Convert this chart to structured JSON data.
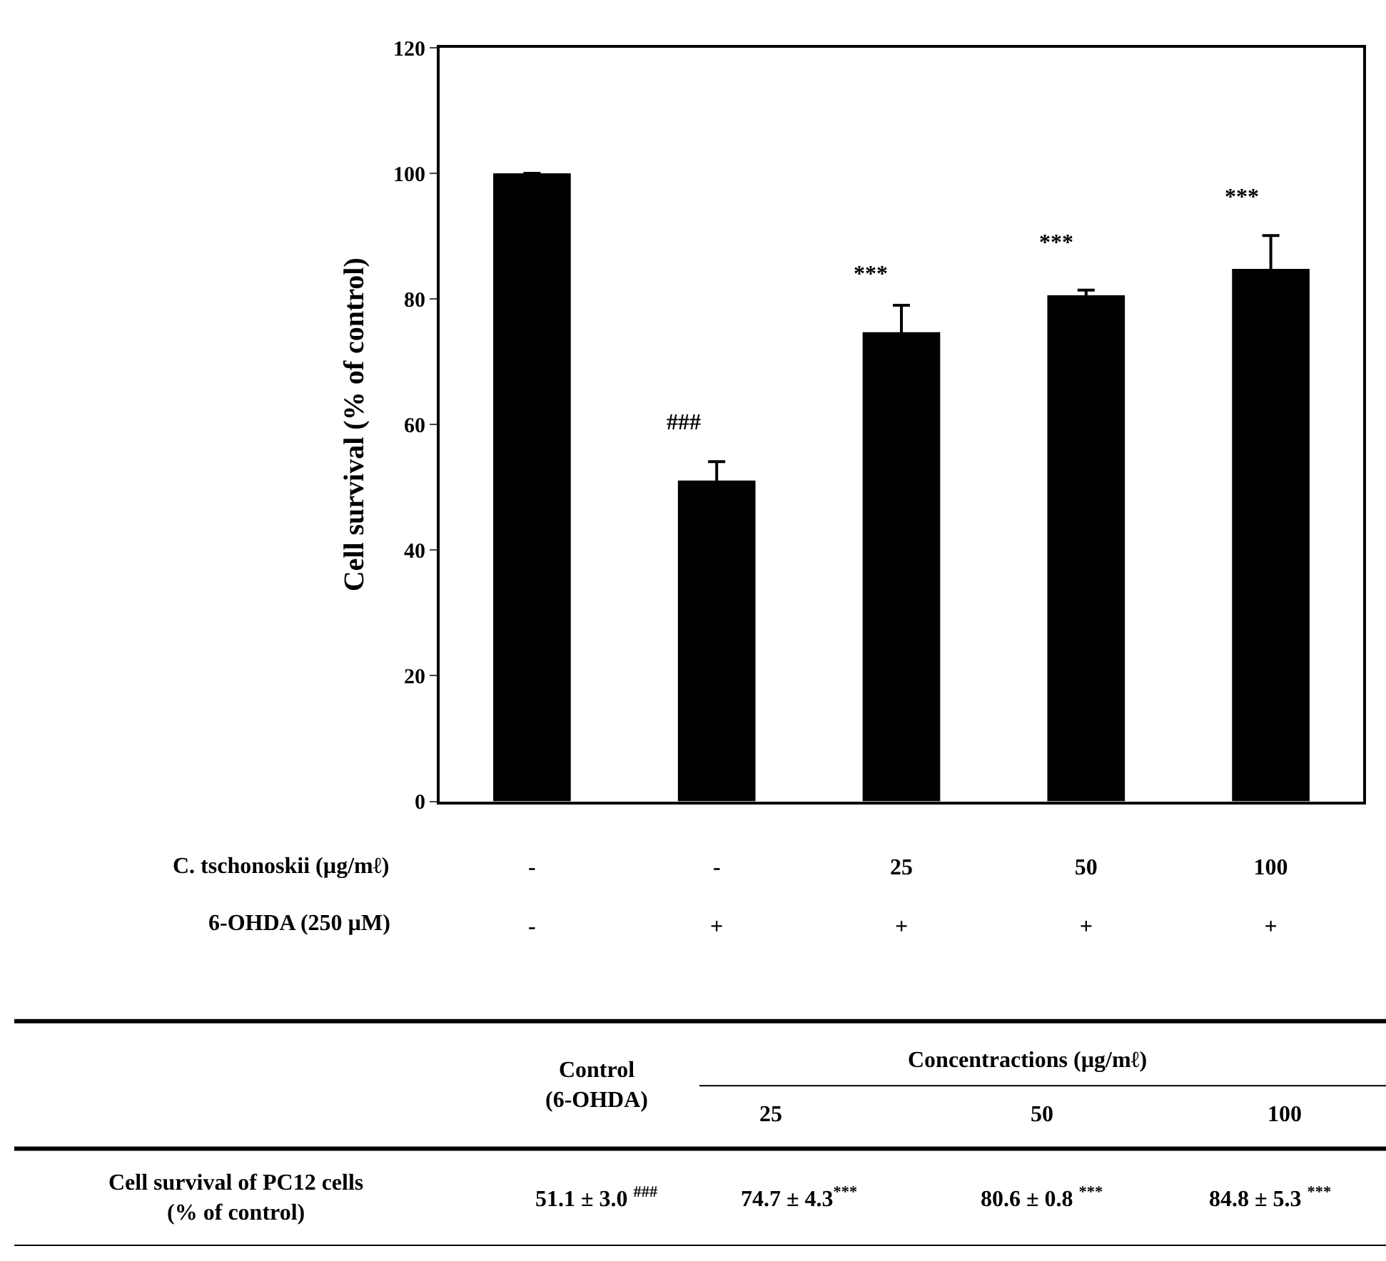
{
  "chart_data": {
    "type": "bar",
    "ylabel": "Cell survival (% of control)",
    "categories": [
      "-\n-",
      "-\n+",
      "25\n+",
      "50\n+",
      "100\n+"
    ],
    "values": [
      100,
      51.1,
      74.7,
      80.6,
      84.8
    ],
    "errors": [
      null,
      3.0,
      4.3,
      0.8,
      5.3
    ],
    "color": "#000000",
    "ylim": [
      0,
      120
    ],
    "yticks": [
      0,
      20,
      40,
      60,
      80,
      100,
      120
    ],
    "annotations": [
      "C. tschonoskii (µg/mℓ)",
      "6-OHDA (250 µM)",
      "Control\n(6-OHDA)",
      "Concentractions (µg/mℓ)",
      "25",
      "50",
      "100",
      "Cell survival of PC12 cells\n(% of control)",
      "51.1 ± 3.0 $^{###}$",
      "74.7 ± 4.3$^{***}$",
      "80.6 ± 0.8 $^{***}$",
      "84.8 ± 5.3 $^{***}$",
      "###",
      "***",
      "***",
      "***"
    ]
  }
}
